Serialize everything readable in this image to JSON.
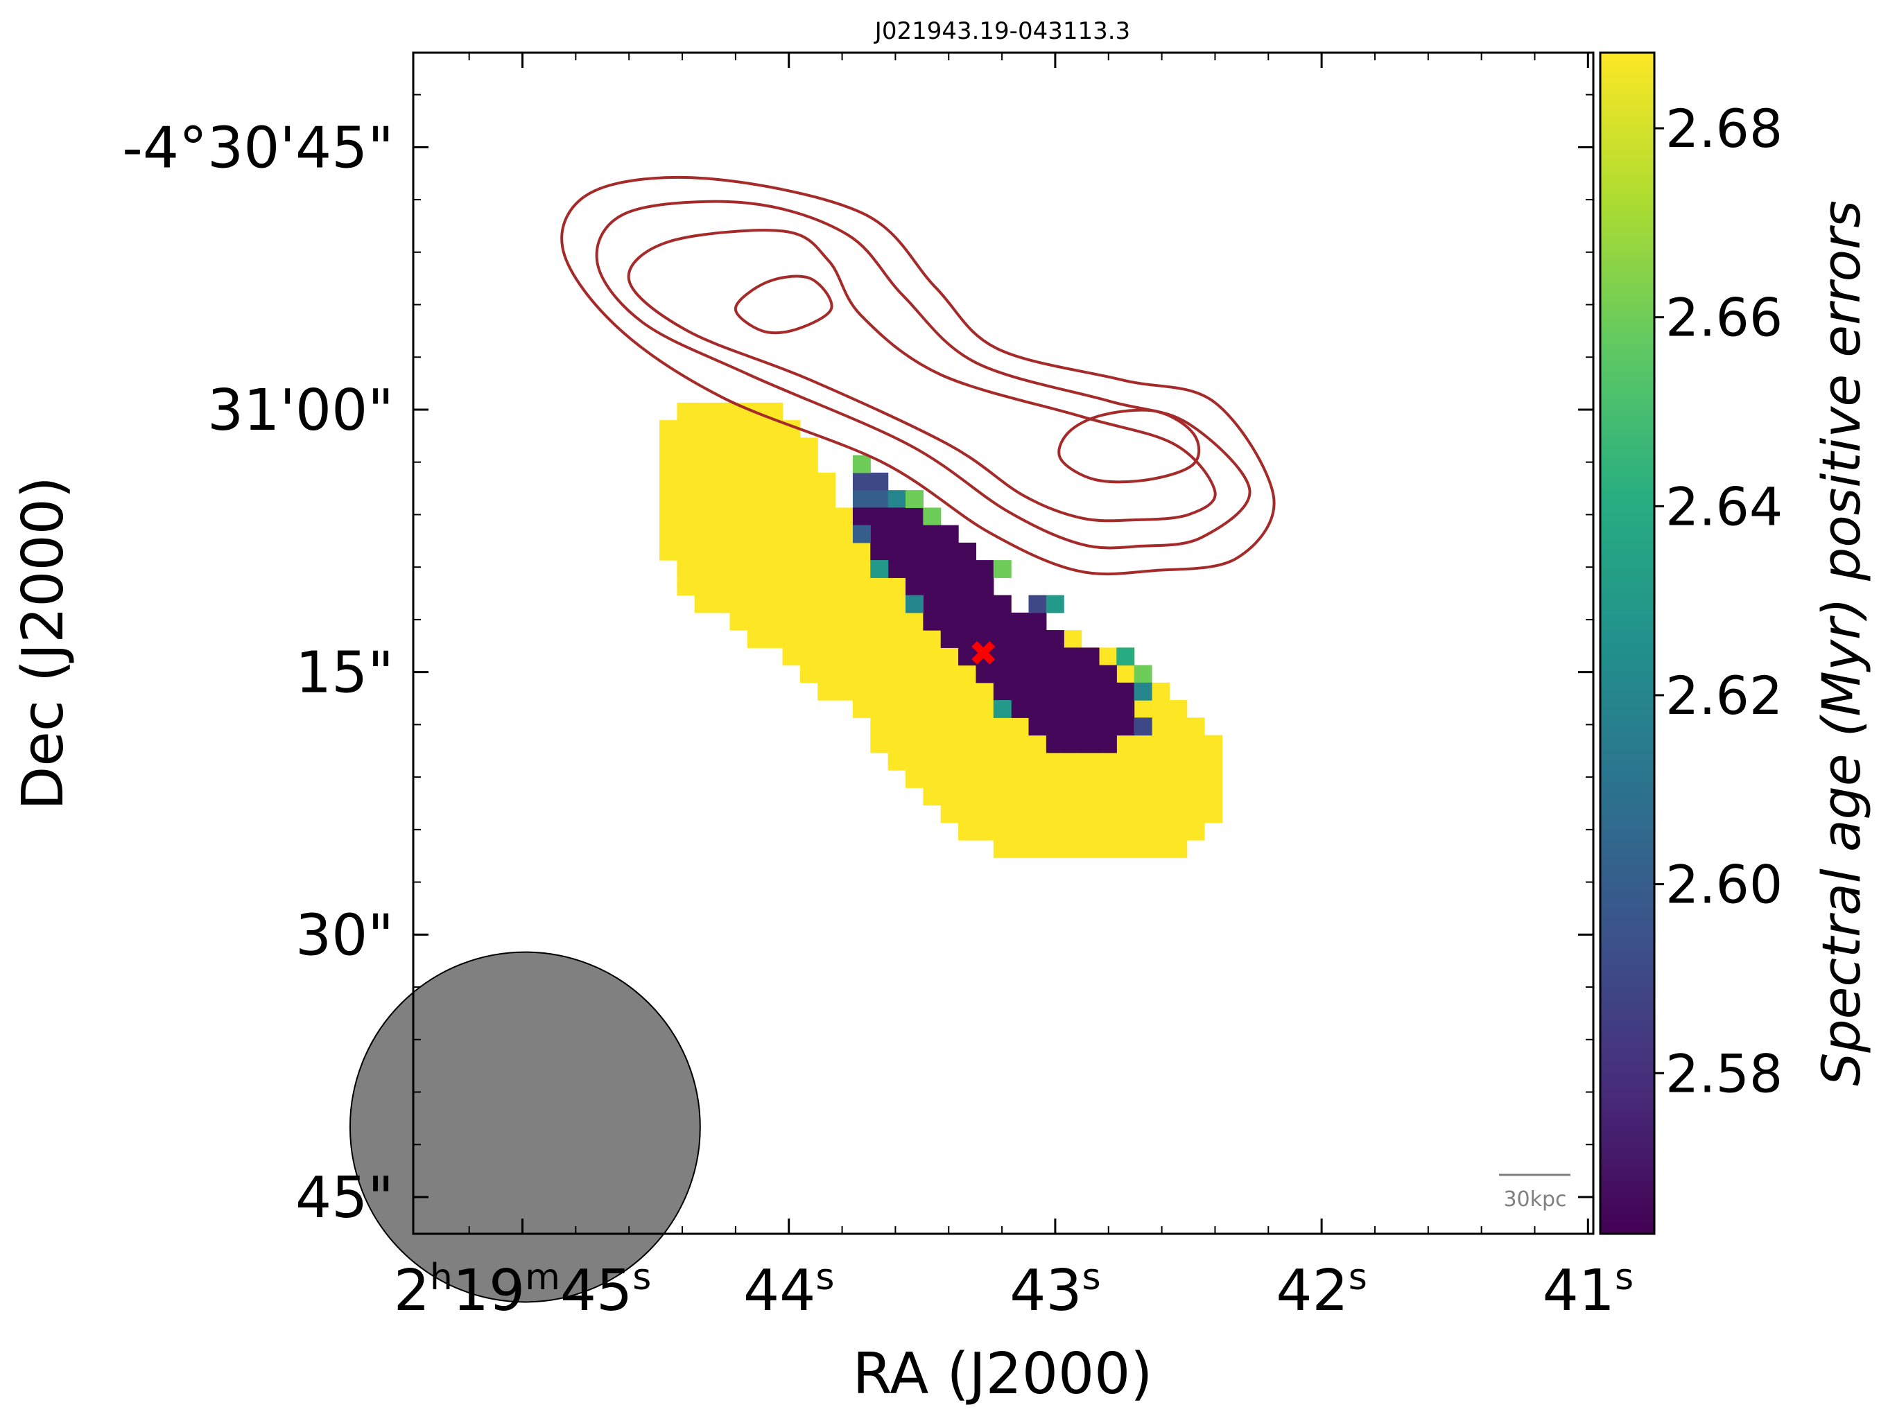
{
  "chart_data": {
    "type": "heatmap",
    "title": "J021943.19-043113.3",
    "xlabel": "RA (J2000)",
    "ylabel": "Dec (J2000)",
    "colorbar_label": "Spectral age (Myr) positive errors",
    "colormap": "viridis",
    "color_range": [
      2.563,
      2.688
    ],
    "colorbar_ticks": [
      "2.58",
      "2.60",
      "2.62",
      "2.64",
      "2.66",
      "2.68"
    ],
    "colorbar_tick_values": [
      2.58,
      2.6,
      2.62,
      2.64,
      2.66,
      2.68
    ],
    "x_ticks": [
      {
        "value_s": 45,
        "h": "2",
        "m": "19",
        "s": "45"
      },
      {
        "value_s": 44,
        "s": "44"
      },
      {
        "value_s": 43,
        "s": "43"
      },
      {
        "value_s": 42,
        "s": "42"
      },
      {
        "value_s": 41,
        "s": "41"
      }
    ],
    "x_range_s": [
      45.41,
      40.98
    ],
    "y_ticks": [
      {
        "value_arcsec": 45,
        "label": "-4°30'45\""
      },
      {
        "value_arcsec": 60,
        "label": "31'00\""
      },
      {
        "value_arcsec": 75,
        "label": "15\""
      },
      {
        "value_arcsec": 90,
        "label": "30\""
      },
      {
        "value_arcsec": 105,
        "label": "45\""
      }
    ],
    "y_range_arcsec": [
      39.6,
      107.1
    ],
    "grid": false,
    "pixel_grid": {
      "x0": 45.41,
      "dx": -0.066,
      "y0": 39.6,
      "dy": 1.0
    },
    "emission_rows": [
      {
        "row": 20,
        "spans": [
          [
            15,
            20
          ]
        ]
      },
      {
        "row": 21,
        "spans": [
          [
            14,
            21
          ]
        ]
      },
      {
        "row": 22,
        "spans": [
          [
            14,
            22
          ]
        ]
      },
      {
        "row": 23,
        "spans": [
          [
            14,
            22
          ]
        ]
      },
      {
        "row": 24,
        "spans": [
          [
            14,
            23
          ]
        ]
      },
      {
        "row": 25,
        "spans": [
          [
            14,
            23
          ]
        ]
      },
      {
        "row": 26,
        "spans": [
          [
            14,
            24
          ]
        ]
      },
      {
        "row": 27,
        "spans": [
          [
            14,
            26
          ]
        ]
      },
      {
        "row": 28,
        "spans": [
          [
            14,
            28
          ]
        ]
      },
      {
        "row": 29,
        "spans": [
          [
            15,
            30
          ]
        ]
      },
      {
        "row": 30,
        "spans": [
          [
            15,
            31
          ]
        ]
      },
      {
        "row": 31,
        "spans": [
          [
            16,
            33
          ]
        ]
      },
      {
        "row": 32,
        "spans": [
          [
            18,
            35
          ]
        ]
      },
      {
        "row": 33,
        "spans": [
          [
            19,
            37
          ]
        ]
      },
      {
        "row": 34,
        "spans": [
          [
            21,
            40
          ]
        ]
      },
      {
        "row": 35,
        "spans": [
          [
            22,
            41
          ]
        ]
      },
      {
        "row": 36,
        "spans": [
          [
            23,
            42
          ]
        ]
      },
      {
        "row": 37,
        "spans": [
          [
            25,
            43
          ]
        ]
      },
      {
        "row": 38,
        "spans": [
          [
            26,
            44
          ]
        ]
      },
      {
        "row": 39,
        "spans": [
          [
            26,
            45
          ]
        ]
      },
      {
        "row": 40,
        "spans": [
          [
            27,
            45
          ]
        ]
      },
      {
        "row": 41,
        "spans": [
          [
            28,
            45
          ]
        ]
      },
      {
        "row": 42,
        "spans": [
          [
            29,
            45
          ]
        ]
      },
      {
        "row": 43,
        "spans": [
          [
            30,
            45
          ]
        ]
      },
      {
        "row": 44,
        "spans": [
          [
            31,
            44
          ]
        ]
      },
      {
        "row": 45,
        "spans": [
          [
            33,
            43
          ]
        ]
      }
    ],
    "low_age_cells": [
      {
        "row": 24,
        "spans": [
          [
            25,
            26
          ]
        ],
        "value": 2.59
      },
      {
        "row": 25,
        "spans": [
          [
            25,
            26
          ]
        ],
        "value": 2.6
      },
      {
        "row": 25,
        "spans": [
          [
            27,
            27
          ]
        ],
        "value": 2.62
      },
      {
        "row": 26,
        "spans": [
          [
            25,
            28
          ]
        ],
        "value": 2.565
      },
      {
        "row": 26,
        "spans": [
          [
            29,
            29
          ]
        ],
        "value": 2.66
      },
      {
        "row": 27,
        "spans": [
          [
            26,
            30
          ]
        ],
        "value": 2.565
      },
      {
        "row": 28,
        "spans": [
          [
            26,
            31
          ]
        ],
        "value": 2.565
      },
      {
        "row": 29,
        "spans": [
          [
            27,
            32
          ]
        ],
        "value": 2.565
      },
      {
        "row": 30,
        "spans": [
          [
            28,
            32
          ]
        ],
        "value": 2.565
      },
      {
        "row": 31,
        "spans": [
          [
            29,
            33
          ]
        ],
        "value": 2.565
      },
      {
        "row": 32,
        "spans": [
          [
            29,
            35
          ]
        ],
        "value": 2.565
      },
      {
        "row": 33,
        "spans": [
          [
            30,
            36
          ]
        ],
        "value": 2.565
      },
      {
        "row": 34,
        "spans": [
          [
            31,
            38
          ]
        ],
        "value": 2.565
      },
      {
        "row": 35,
        "spans": [
          [
            32,
            39
          ]
        ],
        "value": 2.565
      },
      {
        "row": 36,
        "spans": [
          [
            33,
            40
          ]
        ],
        "value": 2.565
      },
      {
        "row": 37,
        "spans": [
          [
            34,
            40
          ]
        ],
        "value": 2.565
      },
      {
        "row": 38,
        "spans": [
          [
            35,
            40
          ]
        ],
        "value": 2.565
      },
      {
        "row": 39,
        "spans": [
          [
            36,
            39
          ]
        ],
        "value": 2.565
      }
    ],
    "accent_cells": [
      {
        "row": 23,
        "col": 25,
        "value": 2.66
      },
      {
        "row": 25,
        "col": 28,
        "value": 2.66
      },
      {
        "row": 27,
        "col": 25,
        "value": 2.6
      },
      {
        "row": 29,
        "col": 33,
        "value": 2.66
      },
      {
        "row": 29,
        "col": 26,
        "value": 2.63
      },
      {
        "row": 31,
        "col": 35,
        "value": 2.59
      },
      {
        "row": 31,
        "col": 36,
        "value": 2.63
      },
      {
        "row": 31,
        "col": 28,
        "value": 2.62
      },
      {
        "row": 34,
        "col": 40,
        "value": 2.64
      },
      {
        "row": 35,
        "col": 41,
        "value": 2.66
      },
      {
        "row": 36,
        "col": 41,
        "value": 2.62
      },
      {
        "row": 37,
        "col": 33,
        "value": 2.63
      },
      {
        "row": 38,
        "col": 41,
        "value": 2.59
      }
    ],
    "core_marker": {
      "ra_s": 43.27,
      "dec_arcsec": 73.9,
      "marker": "x",
      "color": "#ff0000"
    },
    "contours": [
      {
        "level": 1,
        "points": [
          [
            44.73,
            47.5
          ],
          [
            44.3,
            46.8
          ],
          [
            43.72,
            48.8
          ],
          [
            43.45,
            53.0
          ],
          [
            43.22,
            56.5
          ],
          [
            42.75,
            58.3
          ],
          [
            42.4,
            59.6
          ],
          [
            42.18,
            65.0
          ],
          [
            42.32,
            68.5
          ],
          [
            42.63,
            69.2
          ],
          [
            42.92,
            69.2
          ],
          [
            43.25,
            67.0
          ],
          [
            43.65,
            63.0
          ],
          [
            44.25,
            59.3
          ],
          [
            44.65,
            55.2
          ],
          [
            44.85,
            50.7
          ]
        ]
      },
      {
        "level": 2,
        "points": [
          [
            44.6,
            48.7
          ],
          [
            44.15,
            48.2
          ],
          [
            43.78,
            50.0
          ],
          [
            43.57,
            53.5
          ],
          [
            43.3,
            57.3
          ],
          [
            42.8,
            59.5
          ],
          [
            42.5,
            60.8
          ],
          [
            42.27,
            64.6
          ],
          [
            42.45,
            67.3
          ],
          [
            42.68,
            67.8
          ],
          [
            42.9,
            67.7
          ],
          [
            43.18,
            65.8
          ],
          [
            43.55,
            62.0
          ],
          [
            44.15,
            58.0
          ],
          [
            44.55,
            55.0
          ],
          [
            44.72,
            51.5
          ]
        ]
      },
      {
        "level": 3,
        "points": [
          [
            44.45,
            50.4
          ],
          [
            44.02,
            49.8
          ],
          [
            43.85,
            51.5
          ],
          [
            43.73,
            54.6
          ],
          [
            43.43,
            58.0
          ],
          [
            42.9,
            60.4
          ],
          [
            42.55,
            62.0
          ],
          [
            42.4,
            64.7
          ],
          [
            42.5,
            66.0
          ],
          [
            42.7,
            66.3
          ],
          [
            42.9,
            66.2
          ],
          [
            43.12,
            64.9
          ],
          [
            43.4,
            62.0
          ],
          [
            43.92,
            58.3
          ],
          [
            44.38,
            55.5
          ],
          [
            44.6,
            52.6
          ]
        ]
      },
      {
        "level": 4,
        "points": [
          [
            43.92,
            52.5
          ],
          [
            43.84,
            54.2
          ],
          [
            43.97,
            55.4
          ],
          [
            44.1,
            55.5
          ],
          [
            44.2,
            54.2
          ],
          [
            44.08,
            52.7
          ]
        ]
      },
      {
        "level": 4,
        "points": [
          [
            42.62,
            60.1
          ],
          [
            42.48,
            61.4
          ],
          [
            42.48,
            63.1
          ],
          [
            42.65,
            64.0
          ],
          [
            42.85,
            64.0
          ],
          [
            42.98,
            62.8
          ],
          [
            42.95,
            61.3
          ],
          [
            42.82,
            60.3
          ]
        ]
      }
    ],
    "contour_color": "#a52a2a",
    "beam": {
      "ra_s": 44.99,
      "dec_arcsec": 101.0,
      "major_arcsec": 20.0,
      "minor_arcsec": 20.0,
      "color": "#808080"
    },
    "scale_bar": {
      "label": "30kpc",
      "color": "#808080"
    }
  }
}
